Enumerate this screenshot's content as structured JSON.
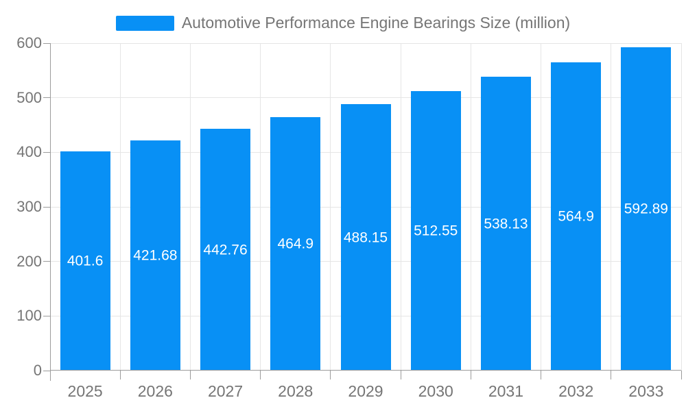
{
  "chart_data": {
    "type": "bar",
    "title": "Automotive Performance Engine Bearings Size (million)",
    "categories": [
      "2025",
      "2026",
      "2027",
      "2028",
      "2029",
      "2030",
      "2031",
      "2032",
      "2033"
    ],
    "values": [
      401.6,
      421.68,
      442.76,
      464.9,
      488.15,
      512.55,
      538.13,
      564.9,
      592.89
    ],
    "value_labels": [
      "401.6",
      "421.68",
      "442.76",
      "464.9",
      "488.15",
      "512.55",
      "538.13",
      "564.9",
      "592.89"
    ],
    "xlabel": "",
    "ylabel": "",
    "ylim": [
      0,
      600
    ],
    "y_ticks": [
      0,
      100,
      200,
      300,
      400,
      500,
      600
    ],
    "y_tick_labels": [
      "0",
      "100",
      "200",
      "300",
      "400",
      "500",
      "600"
    ],
    "grid": true,
    "legend_position": "top",
    "value_label_position": "center-inside",
    "colors": {
      "bar": "#0890F5",
      "grid": "#E5E5E5",
      "axis": "#9B9B9B",
      "tick_text": "#757575",
      "value_label": "#FFFFFF",
      "background": "#FFFFFF"
    }
  }
}
